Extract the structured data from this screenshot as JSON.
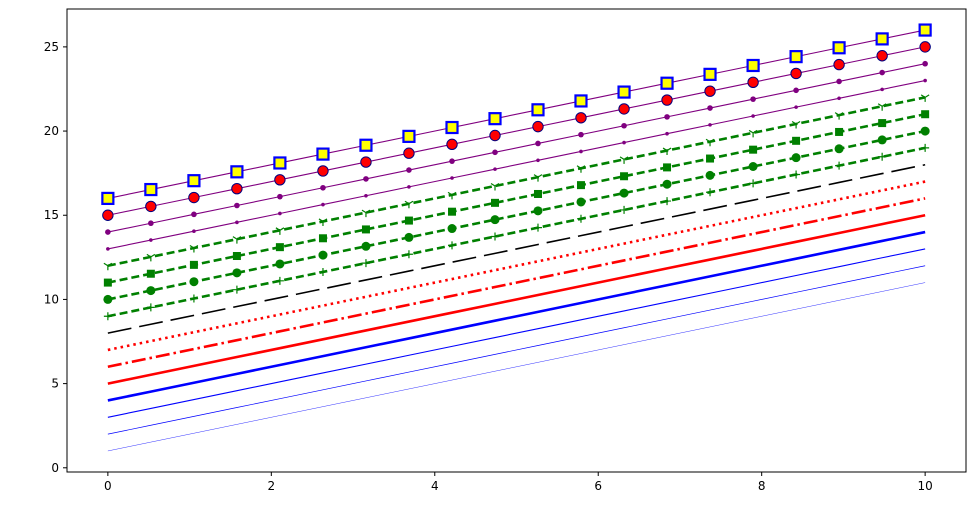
{
  "chart_data": {
    "type": "line",
    "title": "",
    "xlabel": "",
    "ylabel": "",
    "xlim": [
      -0.5,
      10.5
    ],
    "ylim": [
      -0.25,
      27.25
    ],
    "x_ticks": [
      0,
      2,
      4,
      6,
      8,
      10
    ],
    "y_ticks": [
      0,
      5,
      10,
      15,
      20,
      25
    ],
    "grid": false,
    "legend": "none",
    "x_points": [
      0,
      0.526,
      1.053,
      1.579,
      2.105,
      2.632,
      3.158,
      3.684,
      4.211,
      4.737,
      5.263,
      5.789,
      6.316,
      6.842,
      7.368,
      7.895,
      8.421,
      8.947,
      9.474,
      10
    ],
    "series": [
      {
        "y_start": 1,
        "y_end": 11,
        "color": "#0000ff",
        "linestyle": "solid",
        "linewidth": 0.4,
        "marker": "none"
      },
      {
        "y_start": 2,
        "y_end": 12,
        "color": "#0000ff",
        "linestyle": "solid",
        "linewidth": 0.7,
        "marker": "none"
      },
      {
        "y_start": 3,
        "y_end": 13,
        "color": "#0000ff",
        "linestyle": "solid",
        "linewidth": 1.1,
        "marker": "none"
      },
      {
        "y_start": 4,
        "y_end": 14,
        "color": "#0000ff",
        "linestyle": "solid",
        "linewidth": 2.6,
        "marker": "none"
      },
      {
        "y_start": 5,
        "y_end": 15,
        "color": "#ff0000",
        "linestyle": "solid",
        "linewidth": 2.6,
        "marker": "none"
      },
      {
        "y_start": 6,
        "y_end": 16,
        "color": "#ff0000",
        "linestyle": "dashdot",
        "linewidth": 2.6,
        "marker": "none"
      },
      {
        "y_start": 7,
        "y_end": 17,
        "color": "#ff0000",
        "linestyle": "dotted",
        "linewidth": 2.6,
        "marker": "none"
      },
      {
        "y_start": 8,
        "y_end": 18,
        "color": "#000000",
        "linestyle": "longdash",
        "linewidth": 1.6,
        "marker": "none"
      },
      {
        "y_start": 9,
        "y_end": 19,
        "color": "#008000",
        "linestyle": "dashed",
        "linewidth": 2.6,
        "marker": "plus"
      },
      {
        "y_start": 10,
        "y_end": 20,
        "color": "#008000",
        "linestyle": "dashed",
        "linewidth": 2.6,
        "marker": "circle"
      },
      {
        "y_start": 11,
        "y_end": 21,
        "color": "#008000",
        "linestyle": "dashed",
        "linewidth": 2.6,
        "marker": "square"
      },
      {
        "y_start": 12,
        "y_end": 22,
        "color": "#008000",
        "linestyle": "dashed",
        "linewidth": 2.6,
        "marker": "tri"
      },
      {
        "y_start": 13,
        "y_end": 23,
        "color": "#800080",
        "linestyle": "solid",
        "linewidth": 1.1,
        "marker": "dot"
      },
      {
        "y_start": 14,
        "y_end": 24,
        "color": "#800080",
        "linestyle": "solid",
        "linewidth": 1.1,
        "marker": "smallcircle"
      },
      {
        "y_start": 15,
        "y_end": 25,
        "color": "#800080",
        "linestyle": "solid",
        "linewidth": 1.1,
        "marker": "circle-red"
      },
      {
        "y_start": 16,
        "y_end": 26,
        "color": "#800080",
        "linestyle": "solid",
        "linewidth": 1.1,
        "marker": "square-yellow"
      }
    ],
    "marker_colors": {
      "red_face": "#ff0000",
      "red_edge": "#000080",
      "yellow_face": "#ffff00",
      "yellow_edge": "#0000ff"
    }
  }
}
